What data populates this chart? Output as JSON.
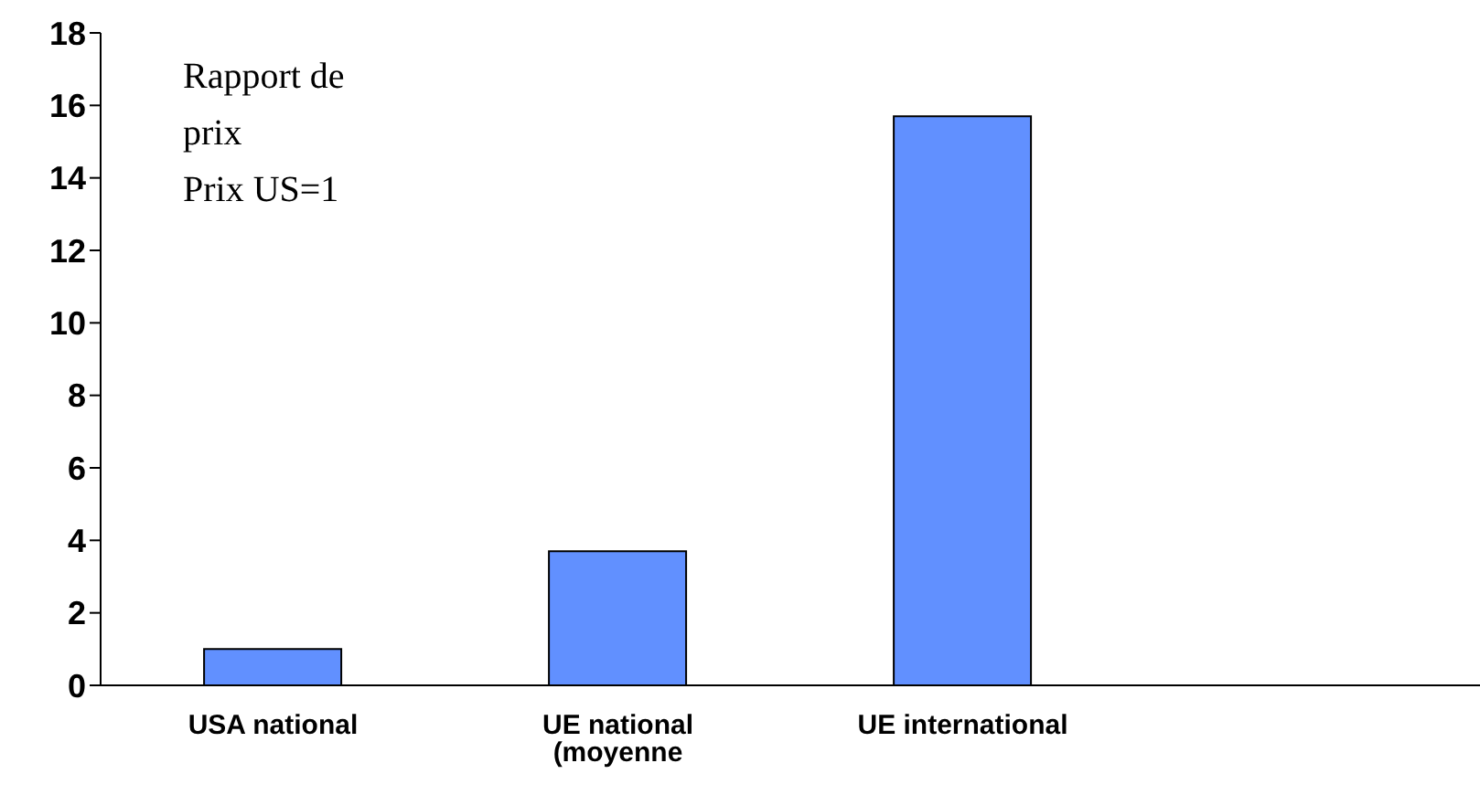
{
  "chart_data": {
    "type": "bar",
    "categories": [
      "USA national",
      "UE national (moyenne",
      "UE international",
      null
    ],
    "values": [
      1,
      3.7,
      15.7,
      null
    ],
    "color": "#6190ff",
    "ylim": [
      0,
      18
    ],
    "yticks": [
      0,
      2,
      4,
      6,
      8,
      10,
      12,
      14,
      16,
      18
    ],
    "grid": false,
    "annotations": [
      "Rapport de prix",
      "Prix US=1"
    ]
  }
}
